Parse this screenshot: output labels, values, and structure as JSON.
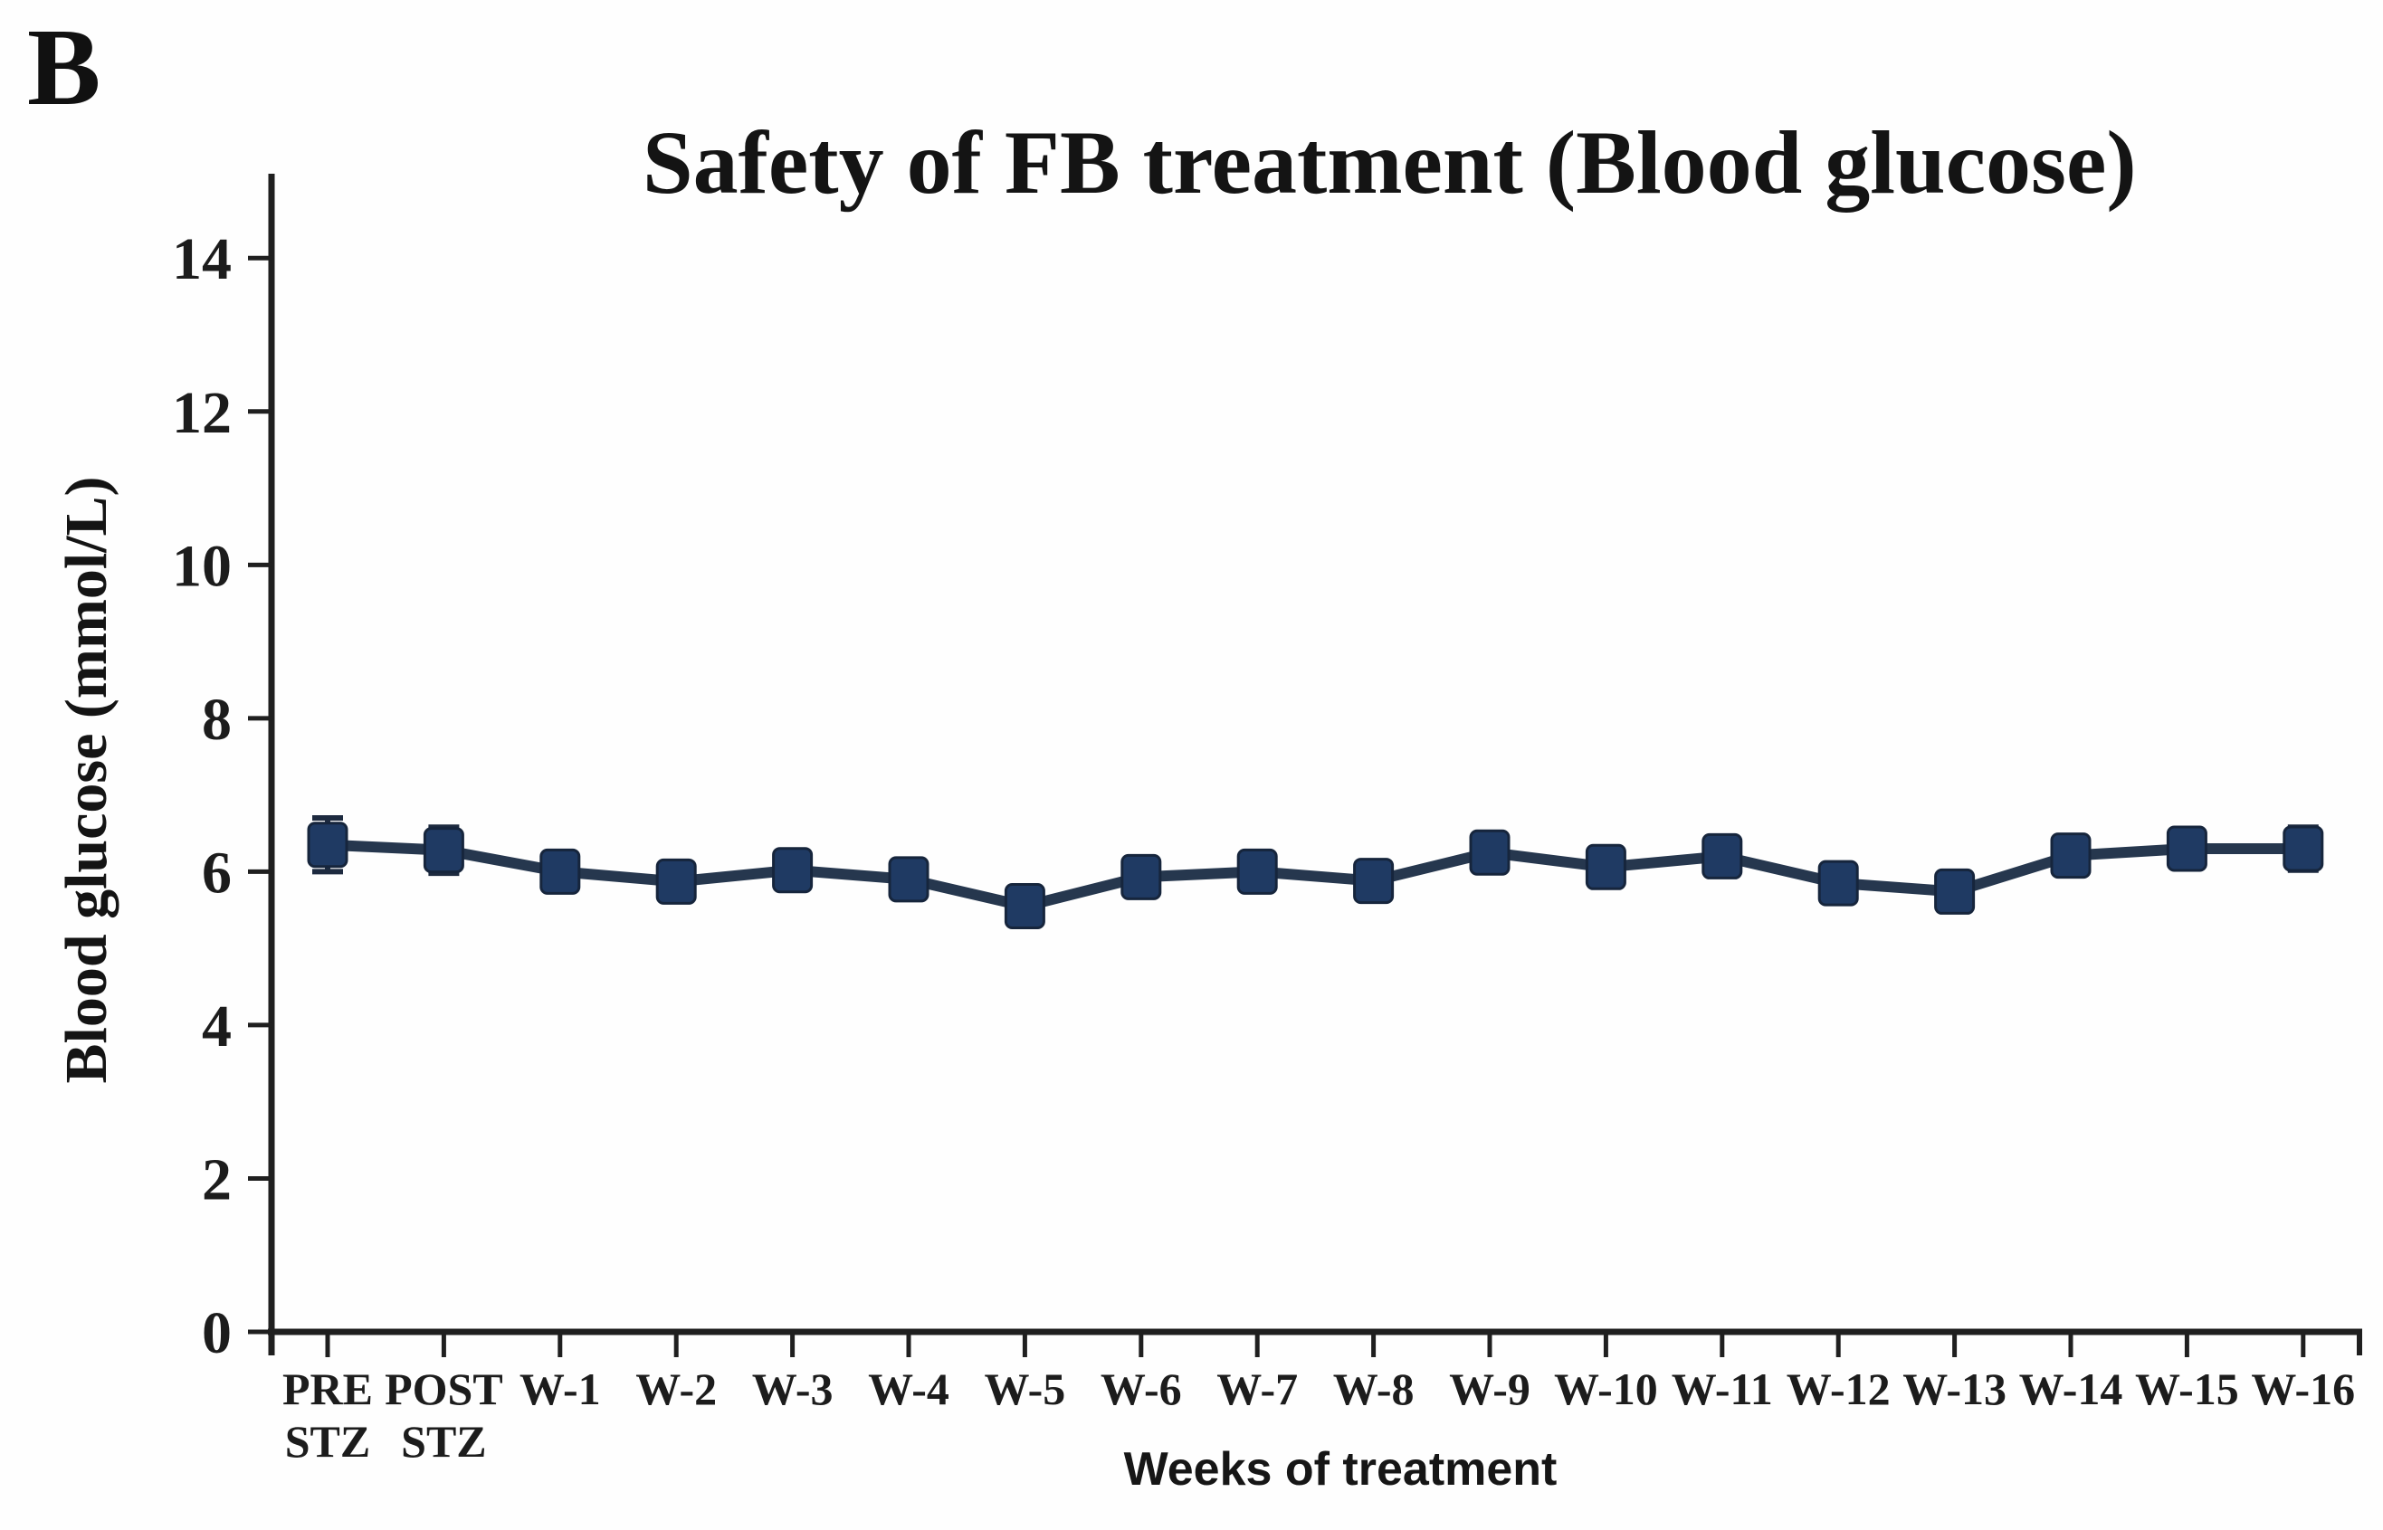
{
  "figure": {
    "panel_label": "B",
    "background": "#fefefe"
  },
  "chart_data": {
    "type": "line",
    "title": "Safety of FB treatment (Blood glucose)",
    "xlabel": "Weeks of treatment",
    "ylabel": "Blood glucose (mmol/L)",
    "categories": [
      "PRE\nSTZ",
      "POST\nSTZ",
      "W-1",
      "W-2",
      "W-3",
      "W-4",
      "W-5",
      "W-6",
      "W-7",
      "W-8",
      "W-9",
      "W-10",
      "W-11",
      "W-12",
      "W-13",
      "W-14",
      "W-15",
      "W-16"
    ],
    "series": [
      {
        "name": "Blood glucose (mmol/L)",
        "values": [
          6.35,
          6.28,
          6.0,
          5.87,
          6.02,
          5.9,
          5.55,
          5.93,
          6.0,
          5.88,
          6.25,
          6.06,
          6.2,
          5.85,
          5.74,
          6.21,
          6.3,
          6.3
        ],
        "errors": [
          0.35,
          0.3,
          0.22,
          0.2,
          0.18,
          0.2,
          0.25,
          0.18,
          0.25,
          0.2,
          0.22,
          0.2,
          0.22,
          0.15,
          0.15,
          0.22,
          0.25,
          0.28
        ]
      }
    ],
    "ylim": [
      0,
      15.1
    ],
    "yticks": [
      0,
      2,
      4,
      6,
      8,
      10,
      12,
      14
    ],
    "grid": false,
    "legend_position": "none",
    "marker_shape": "square",
    "colors": {
      "marker": "#1f3a63",
      "marker_stroke": "#16253c",
      "line": "#26374e",
      "error_bar": "#1d2a3f",
      "axis": "#1f1f1f",
      "text": "#1a1a1a"
    }
  }
}
